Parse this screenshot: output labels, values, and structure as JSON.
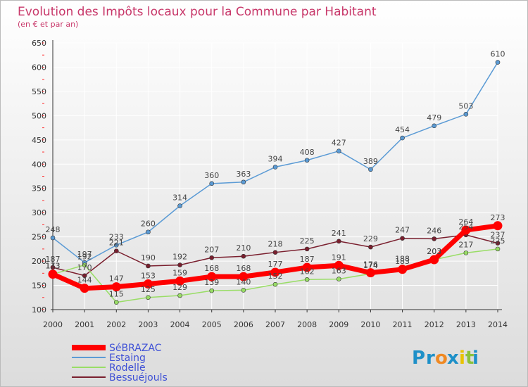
{
  "chart_data": {
    "type": "line",
    "title": "Evolution des Impôts locaux pour la Commune par Habitant",
    "subtitle": "(en € et par an)",
    "x": [
      "2000",
      "2001",
      "2002",
      "2003",
      "2004",
      "2005",
      "2006",
      "2007",
      "2008",
      "2009",
      "2010",
      "2011",
      "2012",
      "2013",
      "2014"
    ],
    "ylim": [
      100,
      650
    ],
    "yticks": [
      100,
      150,
      200,
      250,
      300,
      350,
      400,
      450,
      500,
      550,
      600,
      650
    ],
    "grid": true,
    "legend_position": "bottom-left",
    "series": [
      {
        "name": "Estaing",
        "color": "#5b9bd5",
        "values": [
          248,
          197,
          233,
          260,
          314,
          360,
          363,
          394,
          408,
          427,
          389,
          454,
          479,
          503,
          610
        ]
      },
      {
        "name": "Bessuéjouls",
        "color": "#7a1f2e",
        "values": [
          187,
          170,
          221,
          190,
          192,
          207,
          210,
          218,
          225,
          241,
          229,
          247,
          246,
          254,
          237
        ]
      },
      {
        "name": "Rodelle",
        "color": "#99dd66",
        "values": [
          173,
          192,
          115,
          125,
          129,
          139,
          140,
          152,
          162,
          163,
          174,
          188,
          203,
          217,
          225
        ]
      },
      {
        "name": "SéBRAZAC",
        "color": "#ff0000",
        "values": [
          173,
          144,
          147,
          153,
          159,
          168,
          168,
          177,
          187,
          191,
          176,
          183,
          203,
          264,
          273
        ]
      }
    ],
    "legend": [
      "SéBRAZAC",
      "Estaing",
      "Rodelle",
      "Bessuéjouls"
    ]
  },
  "logo": {
    "text": "Proxiti",
    "letters": [
      "P",
      "r",
      "o",
      "x",
      "i",
      "t",
      "i"
    ],
    "colors": [
      "#1e90c8",
      "#1e90c8",
      "#f08a24",
      "#1e90c8",
      "#e8c200",
      "#8ac23a",
      "#1e90c8"
    ]
  }
}
